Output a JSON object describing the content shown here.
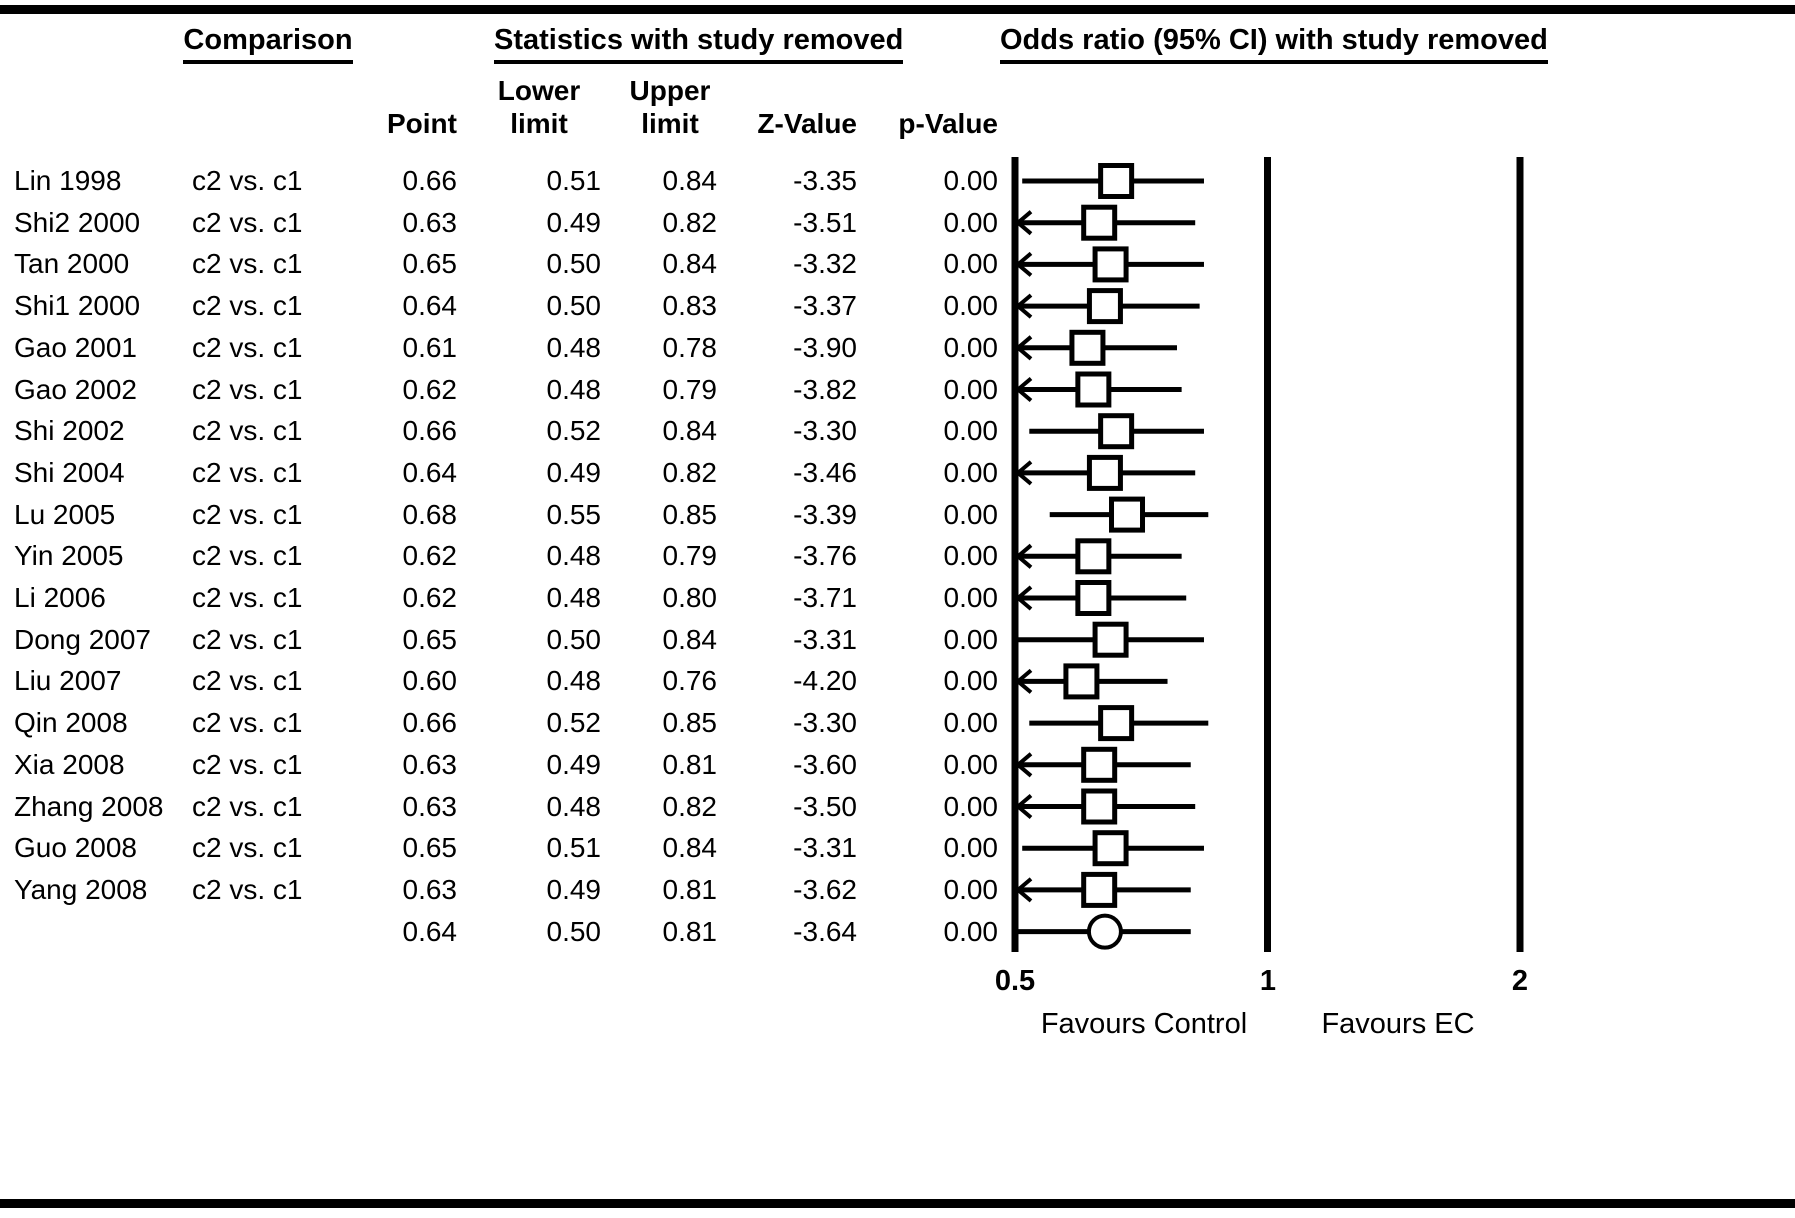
{
  "headers": {
    "comparison": "Comparison",
    "statistics": "Statistics with study removed",
    "odds_ratio": "Odds ratio (95% CI) with study removed"
  },
  "columns": {
    "point": "Point",
    "lower": [
      "Lower",
      "limit"
    ],
    "upper": [
      "Upper",
      "limit"
    ],
    "z_value": "Z-Value",
    "p_value": "p-Value"
  },
  "chart_data": {
    "type": "forest",
    "x_scale": "log",
    "xlim": [
      0.5,
      2
    ],
    "x_ticks": [
      0.5,
      1,
      2
    ],
    "x_tick_labels": [
      "0.5",
      "1",
      "2"
    ],
    "favours_left": "Favours Control",
    "favours_right": "Favours EC",
    "rows": [
      {
        "study": "Lin 1998",
        "comparison": "c2 vs. c1",
        "point": 0.66,
        "lower": 0.51,
        "upper": 0.84,
        "z": -3.35,
        "p": 0.0,
        "clipped_left": false,
        "marker": "square"
      },
      {
        "study": "Shi2 2000",
        "comparison": "c2 vs. c1",
        "point": 0.63,
        "lower": 0.49,
        "upper": 0.82,
        "z": -3.51,
        "p": 0.0,
        "clipped_left": true,
        "marker": "square"
      },
      {
        "study": "Tan 2000",
        "comparison": "c2 vs. c1",
        "point": 0.65,
        "lower": 0.5,
        "upper": 0.84,
        "z": -3.32,
        "p": 0.0,
        "clipped_left": true,
        "marker": "square"
      },
      {
        "study": "Shi1 2000",
        "comparison": "c2 vs. c1",
        "point": 0.64,
        "lower": 0.5,
        "upper": 0.83,
        "z": -3.37,
        "p": 0.0,
        "clipped_left": true,
        "marker": "square"
      },
      {
        "study": "Gao 2001",
        "comparison": "c2 vs. c1",
        "point": 0.61,
        "lower": 0.48,
        "upper": 0.78,
        "z": -3.9,
        "p": 0.0,
        "clipped_left": true,
        "marker": "square"
      },
      {
        "study": "Gao 2002",
        "comparison": "c2 vs. c1",
        "point": 0.62,
        "lower": 0.48,
        "upper": 0.79,
        "z": -3.82,
        "p": 0.0,
        "clipped_left": true,
        "marker": "square"
      },
      {
        "study": "Shi 2002",
        "comparison": "c2 vs. c1",
        "point": 0.66,
        "lower": 0.52,
        "upper": 0.84,
        "z": -3.3,
        "p": 0.0,
        "clipped_left": false,
        "marker": "square"
      },
      {
        "study": "Shi 2004",
        "comparison": "c2 vs. c1",
        "point": 0.64,
        "lower": 0.49,
        "upper": 0.82,
        "z": -3.46,
        "p": 0.0,
        "clipped_left": true,
        "marker": "square"
      },
      {
        "study": "Lu 2005",
        "comparison": "c2 vs. c1",
        "point": 0.68,
        "lower": 0.55,
        "upper": 0.85,
        "z": -3.39,
        "p": 0.0,
        "clipped_left": false,
        "marker": "square"
      },
      {
        "study": "Yin 2005",
        "comparison": "c2 vs. c1",
        "point": 0.62,
        "lower": 0.48,
        "upper": 0.79,
        "z": -3.76,
        "p": 0.0,
        "clipped_left": true,
        "marker": "square"
      },
      {
        "study": "Li 2006",
        "comparison": "c2 vs. c1",
        "point": 0.62,
        "lower": 0.48,
        "upper": 0.8,
        "z": -3.71,
        "p": 0.0,
        "clipped_left": true,
        "marker": "square"
      },
      {
        "study": "Dong 2007",
        "comparison": "c2 vs. c1",
        "point": 0.65,
        "lower": 0.5,
        "upper": 0.84,
        "z": -3.31,
        "p": 0.0,
        "clipped_left": false,
        "marker": "square"
      },
      {
        "study": "Liu 2007",
        "comparison": "c2 vs. c1",
        "point": 0.6,
        "lower": 0.48,
        "upper": 0.76,
        "z": -4.2,
        "p": 0.0,
        "clipped_left": true,
        "marker": "square"
      },
      {
        "study": "Qin 2008",
        "comparison": "c2 vs. c1",
        "point": 0.66,
        "lower": 0.52,
        "upper": 0.85,
        "z": -3.3,
        "p": 0.0,
        "clipped_left": false,
        "marker": "square"
      },
      {
        "study": "Xia 2008",
        "comparison": "c2 vs. c1",
        "point": 0.63,
        "lower": 0.49,
        "upper": 0.81,
        "z": -3.6,
        "p": 0.0,
        "clipped_left": true,
        "marker": "square"
      },
      {
        "study": "Zhang 2008",
        "comparison": "c2 vs. c1",
        "point": 0.63,
        "lower": 0.48,
        "upper": 0.82,
        "z": -3.5,
        "p": 0.0,
        "clipped_left": true,
        "marker": "square"
      },
      {
        "study": "Guo 2008",
        "comparison": "c2 vs. c1",
        "point": 0.65,
        "lower": 0.51,
        "upper": 0.84,
        "z": -3.31,
        "p": 0.0,
        "clipped_left": false,
        "marker": "square"
      },
      {
        "study": "Yang 2008",
        "comparison": "c2 vs. c1",
        "point": 0.63,
        "lower": 0.49,
        "upper": 0.81,
        "z": -3.62,
        "p": 0.0,
        "clipped_left": true,
        "marker": "square"
      },
      {
        "study": "",
        "comparison": "",
        "point": 0.64,
        "lower": 0.5,
        "upper": 0.81,
        "z": -3.64,
        "p": 0.0,
        "clipped_left": false,
        "marker": "circle"
      }
    ]
  }
}
